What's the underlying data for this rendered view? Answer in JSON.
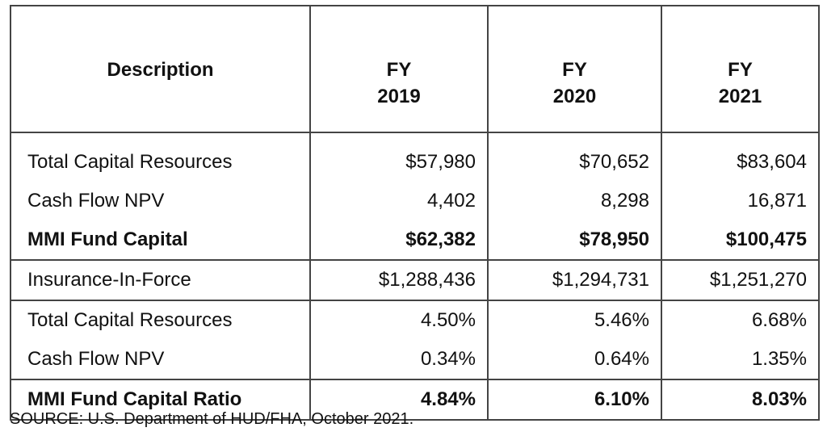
{
  "headers": {
    "description": "Description",
    "fy": [
      {
        "l1": "FY",
        "l2": "2019"
      },
      {
        "l1": "FY",
        "l2": "2020"
      },
      {
        "l1": "FY",
        "l2": "2021"
      }
    ]
  },
  "rows": [
    {
      "label": "Total Capital Resources",
      "values": [
        "$57,980",
        "$70,652",
        "$83,604"
      ]
    },
    {
      "label": "Cash Flow NPV",
      "values": [
        "4,402",
        "8,298",
        "16,871"
      ]
    },
    {
      "label": "MMI Fund Capital",
      "values": [
        "$62,382",
        "$78,950",
        "$100,475"
      ]
    },
    {
      "label": "Insurance-In-Force",
      "values": [
        "$1,288,436",
        "$1,294,731",
        "$1,251,270"
      ]
    },
    {
      "label": "Total Capital Resources",
      "values": [
        "4.50%",
        "5.46%",
        "6.68%"
      ]
    },
    {
      "label": "Cash Flow NPV",
      "values": [
        "0.34%",
        "0.64%",
        "1.35%"
      ]
    },
    {
      "label": "MMI Fund Capital Ratio",
      "values": [
        "4.84%",
        "6.10%",
        "8.03%"
      ]
    }
  ],
  "source": "SOURCE: U.S. Department of HUD/FHA, October 2021."
}
